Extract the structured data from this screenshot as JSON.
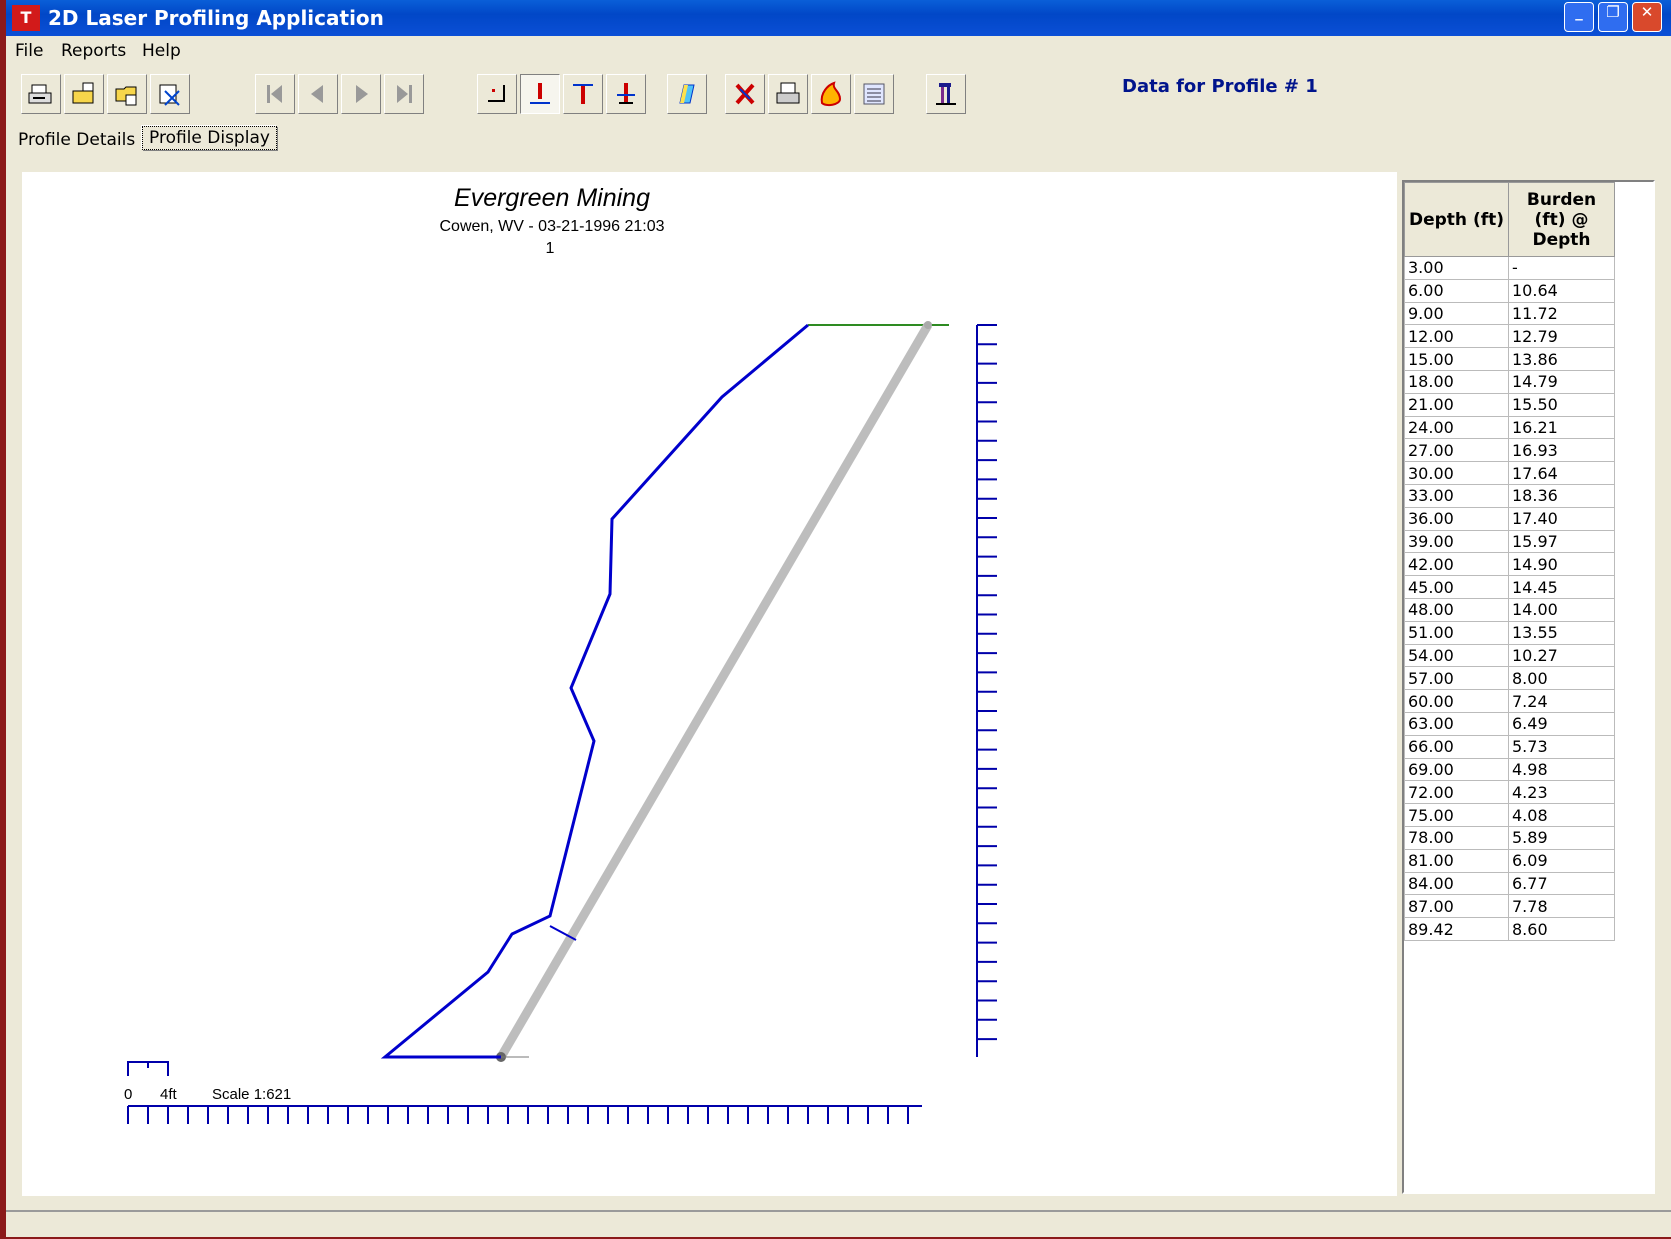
{
  "window": {
    "title": "2D Laser Profiling Application",
    "app_icon": "TLC-logo-icon",
    "controls": [
      "minimize-icon",
      "restore-icon",
      "close-icon"
    ]
  },
  "menu": {
    "file": "File",
    "reports": "Reports",
    "help": "Help"
  },
  "toolbar": {
    "icons": [
      "print-icon",
      "export-icon",
      "open-folder-icon",
      "crop-icon",
      "first-icon",
      "previous-icon",
      "next-icon",
      "last-icon",
      "point-marker-icon",
      "bottom-anchor-icon",
      "top-anchor-icon",
      "burden-marker-icon",
      "color-fill-icon",
      "delete-icon",
      "printer-icon",
      "blast-icon",
      "list-icon",
      "drill-icon"
    ]
  },
  "profile_heading": "Data for Profile # 1",
  "tabs": {
    "details": "Profile Details",
    "display": "Profile Display"
  },
  "plot": {
    "title": "Evergreen Mining",
    "subtitle": "Cowen, WV - 03-21-1996 21:03",
    "profile_number": "1",
    "scale_zero": "0",
    "scale_unit": "4ft",
    "scale_text": "Scale 1:621",
    "colors": {
      "profile": "#0000cc",
      "drill_hole": "#bdbdbd",
      "crest": "#2e8b22",
      "axis": "#0000aa"
    }
  },
  "table": {
    "header_depth": "Depth (ft)",
    "header_burden": "Burden (ft) @ Depth",
    "rows": [
      [
        "3.00",
        "-"
      ],
      [
        "6.00",
        "10.64"
      ],
      [
        "9.00",
        "11.72"
      ],
      [
        "12.00",
        "12.79"
      ],
      [
        "15.00",
        "13.86"
      ],
      [
        "18.00",
        "14.79"
      ],
      [
        "21.00",
        "15.50"
      ],
      [
        "24.00",
        "16.21"
      ],
      [
        "27.00",
        "16.93"
      ],
      [
        "30.00",
        "17.64"
      ],
      [
        "33.00",
        "18.36"
      ],
      [
        "36.00",
        "17.40"
      ],
      [
        "39.00",
        "15.97"
      ],
      [
        "42.00",
        "14.90"
      ],
      [
        "45.00",
        "14.45"
      ],
      [
        "48.00",
        "14.00"
      ],
      [
        "51.00",
        "13.55"
      ],
      [
        "54.00",
        "10.27"
      ],
      [
        "57.00",
        "8.00"
      ],
      [
        "60.00",
        "7.24"
      ],
      [
        "63.00",
        "6.49"
      ],
      [
        "66.00",
        "5.73"
      ],
      [
        "69.00",
        "4.98"
      ],
      [
        "72.00",
        "4.23"
      ],
      [
        "75.00",
        "4.08"
      ],
      [
        "78.00",
        "5.89"
      ],
      [
        "81.00",
        "6.09"
      ],
      [
        "84.00",
        "6.77"
      ],
      [
        "87.00",
        "7.78"
      ],
      [
        "89.42",
        "8.60"
      ]
    ]
  }
}
